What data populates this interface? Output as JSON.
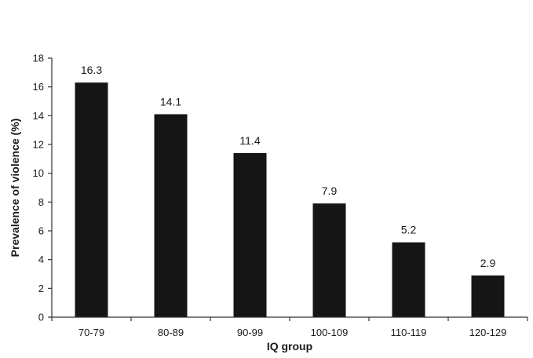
{
  "chart_data": {
    "type": "bar",
    "categories": [
      "70-79",
      "80-89",
      "90-99",
      "100-109",
      "110-119",
      "120-129"
    ],
    "values": [
      16.3,
      14.1,
      11.4,
      7.9,
      5.2,
      2.9
    ],
    "value_labels": [
      "16.3",
      "14.1",
      "11.4",
      "7.9",
      "5.2",
      "2.9"
    ],
    "title": "",
    "xlabel": "IQ group",
    "ylabel": "Prevalence of violence (%)",
    "ylim": [
      0,
      18
    ],
    "yticks": [
      0,
      2,
      4,
      6,
      8,
      10,
      12,
      14,
      16,
      18
    ],
    "grid": false,
    "legend": "none",
    "bar_color": "#151515"
  }
}
